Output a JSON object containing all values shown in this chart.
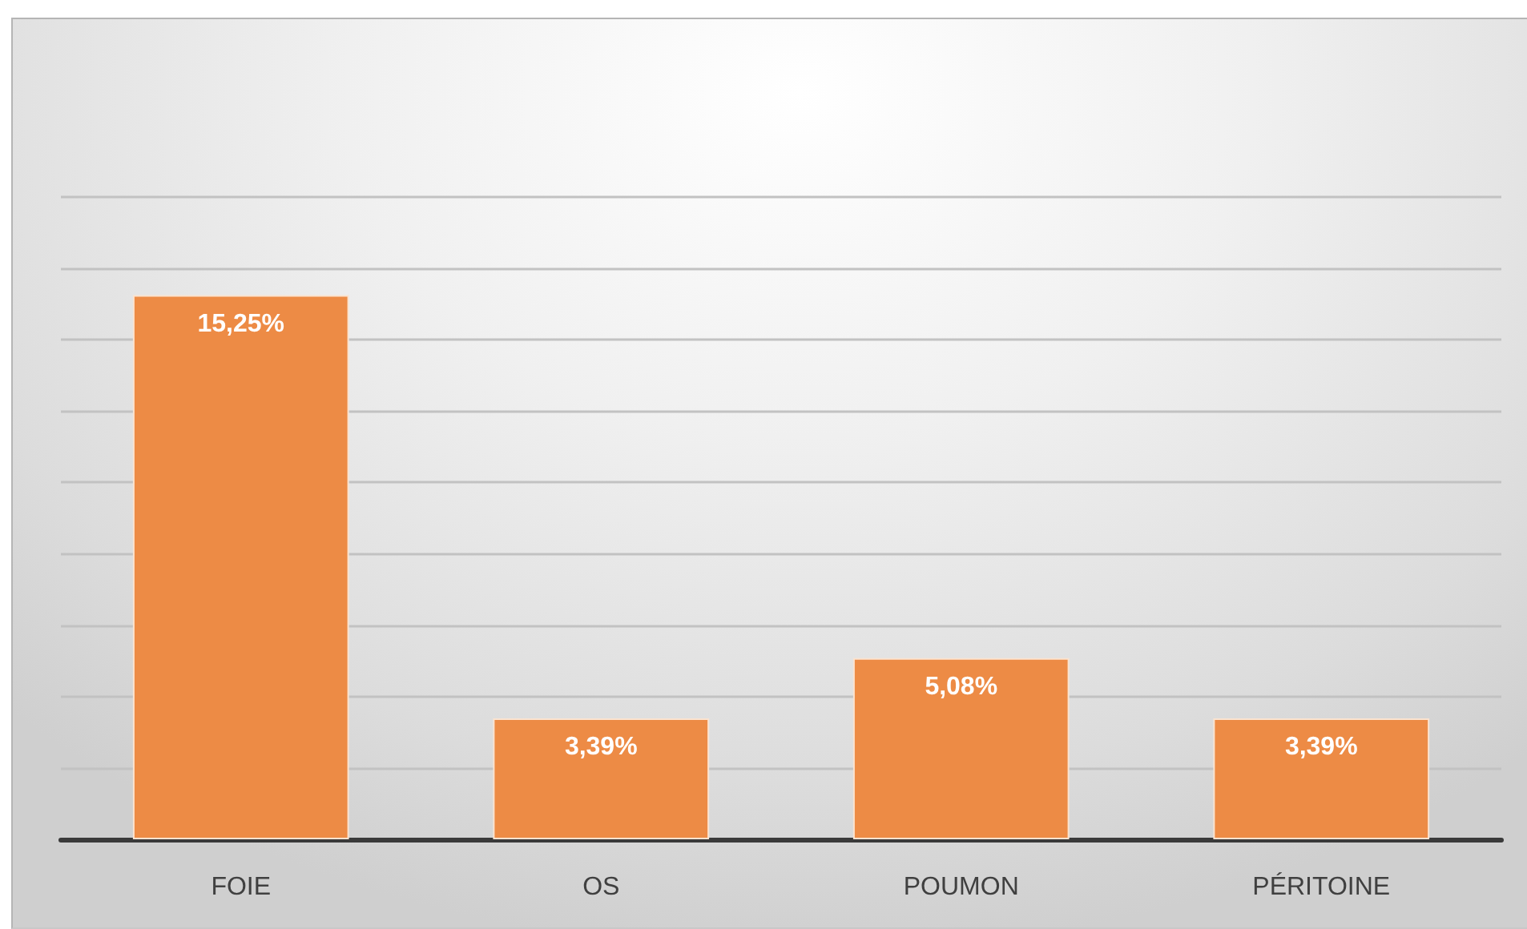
{
  "chart_data": {
    "type": "bar",
    "categories": [
      "FOIE",
      "OS",
      "POUMON",
      "PÉRITOINE"
    ],
    "values": [
      15.25,
      3.39,
      5.08,
      3.39
    ],
    "value_labels": [
      "15,25%",
      "3,39%",
      "5,08%",
      "3,39%"
    ],
    "color": "#ed8b45",
    "ylim": [
      0,
      18
    ],
    "yticks": [
      {
        "value": 0,
        "label": null
      },
      {
        "value": 2,
        "label": null
      },
      {
        "value": 4,
        "label": null
      },
      {
        "value": 6,
        "label": null
      },
      {
        "value": 8,
        "label": null
      },
      {
        "value": 10,
        "label": null
      },
      {
        "value": 12,
        "label": null
      },
      {
        "value": 14,
        "label": null
      },
      {
        "value": 16,
        "label": null
      },
      {
        "value": 18,
        "label": null
      }
    ],
    "grid": "y",
    "tick_labels": "x"
  }
}
